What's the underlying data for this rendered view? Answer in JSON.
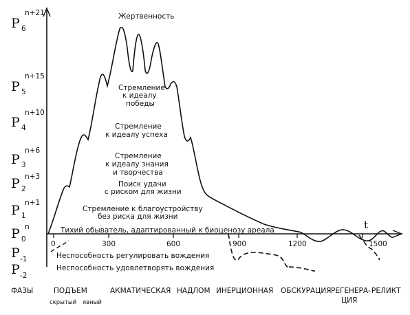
{
  "axis_levels": [
    {
      "base": "P",
      "sub": "6",
      "sup": "n+21"
    },
    {
      "base": "P",
      "sub": "5",
      "sup": "n+15"
    },
    {
      "base": "P",
      "sub": "4",
      "sup": "n+10"
    },
    {
      "base": "P",
      "sub": "3",
      "sup": "n+6"
    },
    {
      "base": "P",
      "sub": "2",
      "sup": "n+3"
    },
    {
      "base": "P",
      "sub": "1",
      "sup": "n+1"
    },
    {
      "base": "P",
      "sub": "0",
      "sup": "n"
    },
    {
      "base": "P",
      "sub": "-1",
      "sup": ""
    },
    {
      "base": "P",
      "sub": "-2",
      "sup": ""
    }
  ],
  "x_ticks": [
    "0",
    "300",
    "600",
    "900",
    "1200",
    "1500"
  ],
  "time_label": "t",
  "curve_labels": {
    "peak": "Жертвенность",
    "l5a": "Стремление",
    "l5b": "к идеалу",
    "l5c": "победы",
    "l4a": "Стремление",
    "l4b": "к идеалу успеха",
    "l3a": "Стремление",
    "l3b": "к идеалу знания",
    "l3c": "и творчества",
    "l2a": "Поиск удачи",
    "l2b": "с риском для жизни",
    "l1a": "Стремление к благоустройству",
    "l1b": "без риска для жизни",
    "l0": "Тихий обыватель, адаптированный к биоценозу ареала",
    "lm1": "Неспособность регулировать вождения",
    "lm2": "Неспособность удовлетворять вождения"
  },
  "phases": {
    "title": "ФАЗЫ",
    "rise": "ПОДЪЕМ",
    "rise_sub1": "скрытый",
    "rise_sub2": "явный",
    "acmatic": "АКМАТИЧЕСКАЯ",
    "break": "НАДЛОМ",
    "inertial": "ИНЕРЦИОННАЯ",
    "obscuration": "ОБСКУРАЦИЯ",
    "regen1": "РЕГЕНЕРА-",
    "regen2": "ЦИЯ",
    "relict": "РЕЛИКТ"
  }
}
